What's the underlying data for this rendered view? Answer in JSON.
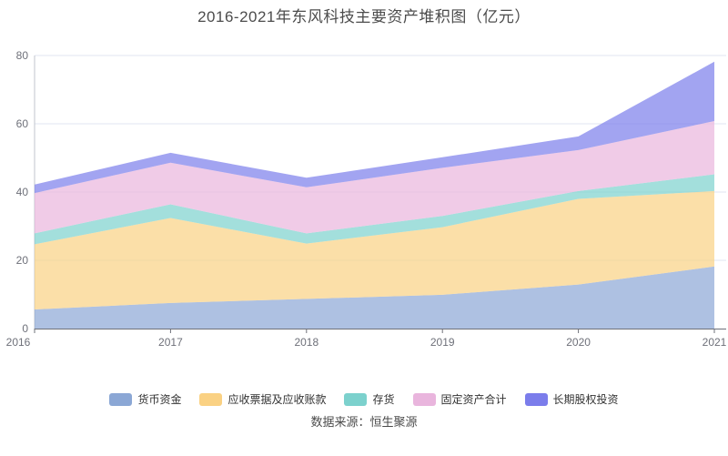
{
  "title": "2016-2021年东风科技主要资产堆积图（亿元）",
  "source_note": "数据来源：恒生聚源",
  "axis": {
    "text_color": "#6e7079",
    "line_color": "#6e7079",
    "grid_color": "#e2e6f0",
    "yaxis_line_color": "#c0c4cc"
  },
  "chart_data": {
    "type": "area",
    "stacked": true,
    "title": "2016-2021年东风科技主要资产堆积图（亿元）",
    "x": [
      "2016",
      "2017",
      "2018",
      "2019",
      "2020",
      "2021"
    ],
    "xlabel": "",
    "ylabel": "亿元",
    "ylim": [
      0,
      80
    ],
    "yticks": [
      "0",
      "20",
      "40",
      "60",
      "80"
    ],
    "grid": "horizontal gridlines on",
    "legend_position": "bottom",
    "area_opacity": 0.7,
    "series": [
      {
        "name": "货币资金",
        "color": "#8ba7d5",
        "values": [
          5.6,
          7.5,
          8.7,
          9.9,
          12.9,
          18.2
        ]
      },
      {
        "name": "应收票据及应收账款",
        "color": "#fad183",
        "values": [
          19.1,
          24.9,
          16.2,
          19.8,
          25.1,
          22.1
        ]
      },
      {
        "name": "存货",
        "color": "#7cd1cd",
        "values": [
          3.2,
          4.0,
          3.0,
          3.3,
          2.3,
          4.9
        ]
      },
      {
        "name": "固定资产合计",
        "color": "#e9b5dd",
        "values": [
          11.8,
          12.2,
          13.5,
          14.1,
          12.0,
          15.6
        ]
      },
      {
        "name": "长期股权投资",
        "color": "#7b7deb",
        "values": [
          2.5,
          2.9,
          2.8,
          3.1,
          4.0,
          17.4
        ]
      }
    ]
  }
}
